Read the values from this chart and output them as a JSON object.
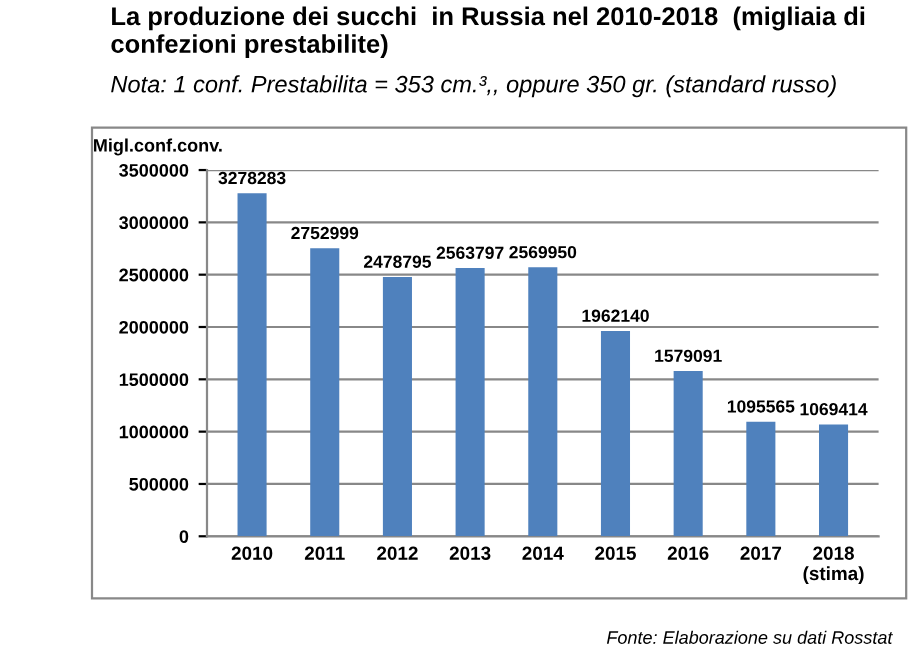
{
  "chart_data": {
    "type": "bar",
    "title": "La produzione dei succhi  in Russia nel 2010-2018  (migliaia di confezioni prestabilite)",
    "subtitle": "Nota: 1 conf. Prestabilita = 353 cm.³,, oppure 350 gr. (standard russo)",
    "ylabel": "Migl.conf.conv.",
    "categories": [
      "2010",
      "2011",
      "2012",
      "2013",
      "2014",
      "2015",
      "2016",
      "2017",
      "2018\n(stima)"
    ],
    "values": [
      3278283,
      2752999,
      2478795,
      2563797,
      2569950,
      1962140,
      1579091,
      1095565,
      1069414
    ],
    "color": "#4f81bd",
    "data_labels": true,
    "ylim": [
      0,
      3500000
    ],
    "yticks": [
      0,
      500000,
      1000000,
      1500000,
      2000000,
      2500000,
      3000000,
      3500000
    ],
    "grid": "y",
    "annotations": [
      "Fonte: Elaborazione su dati Rosstat"
    ]
  }
}
